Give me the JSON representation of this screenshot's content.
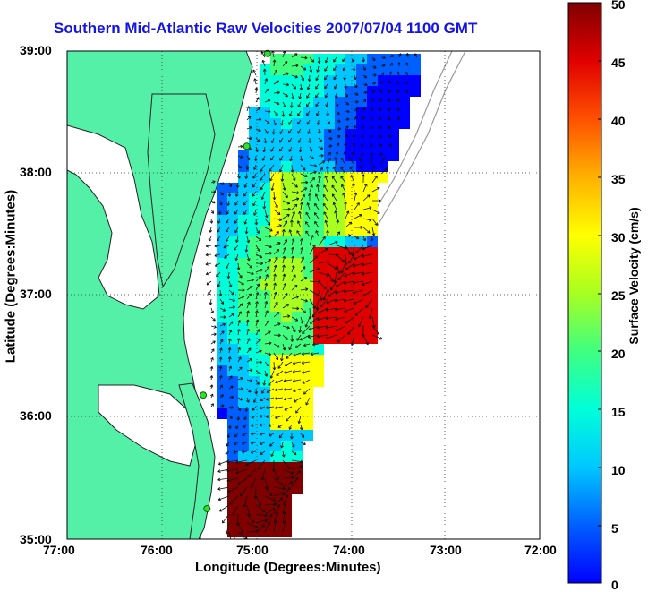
{
  "title": "Southern Mid-Atlantic Raw Velocities 2007/07/04 1100 GMT",
  "xlabel": "Longitude (Degrees:Minutes)",
  "ylabel": "Latitude (Degrees:Minutes)",
  "colorbar": {
    "label": "Surface Velocity (cm/s)",
    "range": [
      0,
      50
    ],
    "ticks": [
      "0",
      "5",
      "10",
      "15",
      "20",
      "25",
      "30",
      "35",
      "40",
      "45",
      "50"
    ]
  },
  "axes": {
    "lon_range": [
      -77,
      -72
    ],
    "lat_range": [
      35,
      39
    ],
    "x_ticks": [
      "77:00",
      "76:00",
      "75:00",
      "74:00",
      "73:00",
      "72:00"
    ],
    "y_ticks": [
      "39:00",
      "38:00",
      "37:00",
      "36:00",
      "35:00"
    ],
    "grid": "dotted"
  },
  "colors": {
    "land": "#55f0a8",
    "coast": "#222222",
    "title": "#1414e6",
    "station": "#33dd33"
  },
  "colormap": [
    "#0000ff",
    "#0060ff",
    "#00c8ff",
    "#00ffd8",
    "#40ff80",
    "#a8ff20",
    "#ffff00",
    "#ffb000",
    "#ff5000",
    "#e00000",
    "#800000"
  ],
  "stations": [
    {
      "lon": -74.88,
      "lat": 38.98
    },
    {
      "lon": -75.1,
      "lat": 38.22
    },
    {
      "lon": -75.56,
      "lat": 36.18
    },
    {
      "lon": -75.52,
      "lat": 35.25
    }
  ]
}
